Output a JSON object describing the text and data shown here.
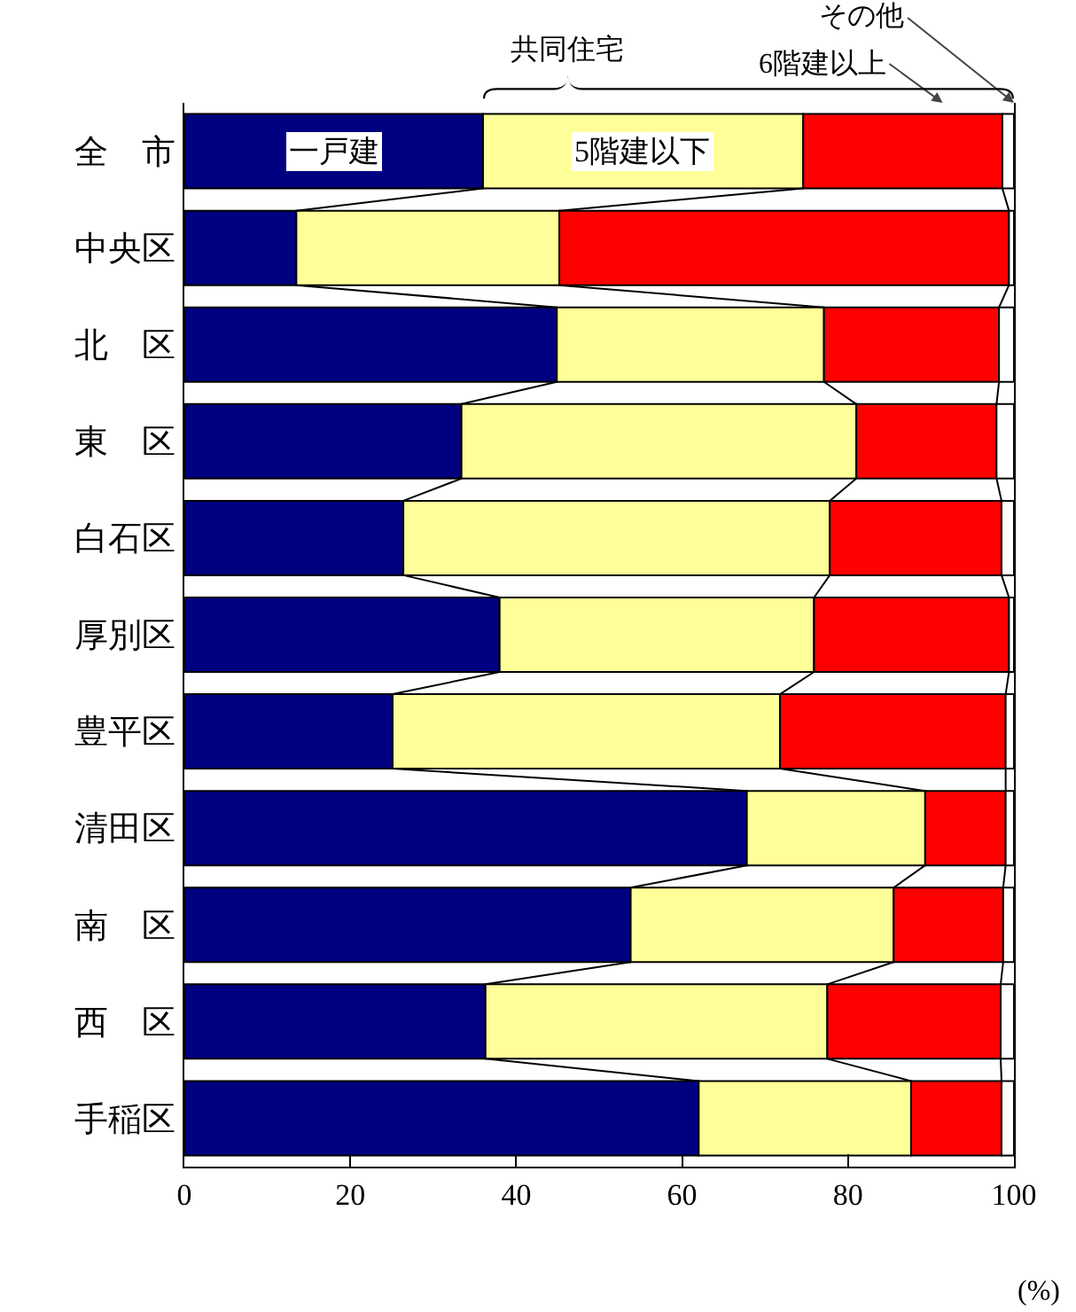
{
  "chart_data": {
    "type": "bar",
    "orientation": "horizontal",
    "stacked": true,
    "categories": [
      "全　市",
      "中央区",
      "北　区",
      "東　区",
      "白石区",
      "厚別区",
      "豊平区",
      "清田区",
      "南　区",
      "西　区",
      "手稲区"
    ],
    "series": [
      {
        "name": "一戸建",
        "color": "#000080",
        "values": [
          36.0,
          13.5,
          44.9,
          33.4,
          26.4,
          38.0,
          25.1,
          67.8,
          53.8,
          36.3,
          62.0
        ]
      },
      {
        "name": "5階建以下",
        "color": "#ffff99",
        "values": [
          38.6,
          31.7,
          32.2,
          47.6,
          51.4,
          37.9,
          46.7,
          21.5,
          31.7,
          41.2,
          25.6
        ]
      },
      {
        "name": "6階建以上",
        "color": "#ff0000",
        "values": [
          24.0,
          54.2,
          21.1,
          16.9,
          20.7,
          23.5,
          27.2,
          9.7,
          13.2,
          20.9,
          10.9
        ]
      },
      {
        "name": "その他",
        "color": "#ffffff",
        "values": [
          1.4,
          0.6,
          1.8,
          2.1,
          1.5,
          0.6,
          1.0,
          1.0,
          1.3,
          1.6,
          1.5
        ]
      }
    ],
    "xlim": [
      0,
      100
    ],
    "xticks": [
      0,
      20,
      40,
      60,
      80,
      100
    ],
    "xlabel": "(%)",
    "annotations": [
      "共同住宅"
    ]
  }
}
